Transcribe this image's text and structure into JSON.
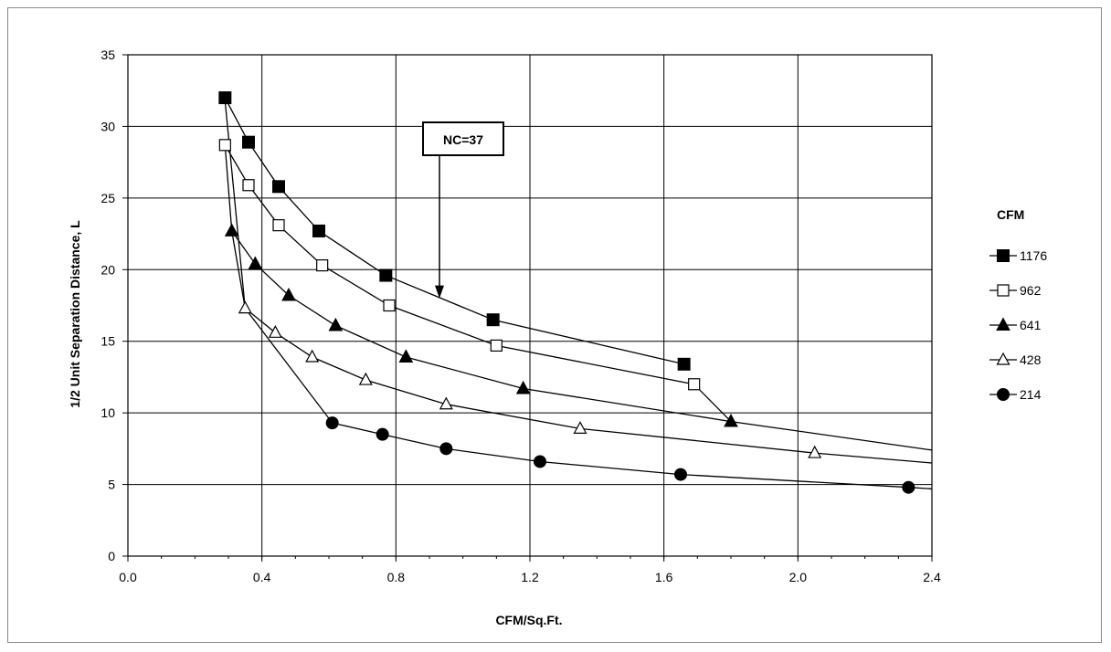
{
  "chart_data": {
    "type": "line",
    "xlabel": "CFM/Sq.Ft.",
    "ylabel": "1/2 Unit Separation Distance, L",
    "xlim": [
      0.0,
      2.4
    ],
    "ylim": [
      0,
      35
    ],
    "x_ticks": [
      "0.0",
      "0.4",
      "0.8",
      "1.2",
      "1.6",
      "2.0",
      "2.4"
    ],
    "y_ticks": [
      "0",
      "5",
      "10",
      "15",
      "20",
      "25",
      "30",
      "35"
    ],
    "grid": true,
    "legend_title": "CFM",
    "legend_position": "right",
    "annotation": {
      "text": "NC=37",
      "arrow_target": [
        0.93,
        18.0
      ]
    },
    "series": [
      {
        "name": "1176",
        "marker": "filled-square",
        "points": [
          [
            0.29,
            32.0
          ],
          [
            0.36,
            28.9
          ],
          [
            0.45,
            25.8
          ],
          [
            0.57,
            22.7
          ],
          [
            0.77,
            19.6
          ],
          [
            1.09,
            16.5
          ],
          [
            1.66,
            13.4
          ]
        ]
      },
      {
        "name": "962",
        "marker": "open-square",
        "points": [
          [
            0.29,
            28.7
          ],
          [
            0.36,
            25.9
          ],
          [
            0.45,
            23.1
          ],
          [
            0.58,
            20.3
          ],
          [
            0.78,
            17.5
          ],
          [
            1.1,
            14.7
          ],
          [
            1.69,
            12.0
          ],
          [
            1.8,
            9.4
          ]
        ]
      },
      {
        "name": "641",
        "marker": "filled-triangle",
        "points": [
          [
            0.31,
            22.7
          ],
          [
            0.38,
            20.4
          ],
          [
            0.48,
            18.2
          ],
          [
            0.62,
            16.1
          ],
          [
            0.83,
            13.9
          ],
          [
            1.18,
            11.7
          ],
          [
            1.8,
            9.4
          ]
        ],
        "tail_to": [
          2.4,
          7.4
        ]
      },
      {
        "name": "428",
        "marker": "open-triangle",
        "points": [
          [
            0.29,
            31.8
          ],
          [
            0.35,
            17.3
          ],
          [
            0.44,
            15.6
          ],
          [
            0.55,
            13.9
          ],
          [
            0.71,
            12.3
          ],
          [
            0.95,
            10.6
          ],
          [
            1.35,
            8.9
          ],
          [
            2.05,
            7.2
          ]
        ],
        "tail_to": [
          2.4,
          6.5
        ]
      },
      {
        "name": "214",
        "marker": "filled-circle",
        "points": [
          [
            0.29,
            28.7
          ],
          [
            0.31,
            22.7
          ],
          [
            0.35,
            17.3
          ],
          [
            0.61,
            9.3
          ],
          [
            0.76,
            8.5
          ],
          [
            0.95,
            7.5
          ],
          [
            1.23,
            6.6
          ],
          [
            1.65,
            5.7
          ],
          [
            2.33,
            4.8
          ]
        ],
        "tail_to": [
          2.4,
          4.7
        ]
      }
    ]
  }
}
